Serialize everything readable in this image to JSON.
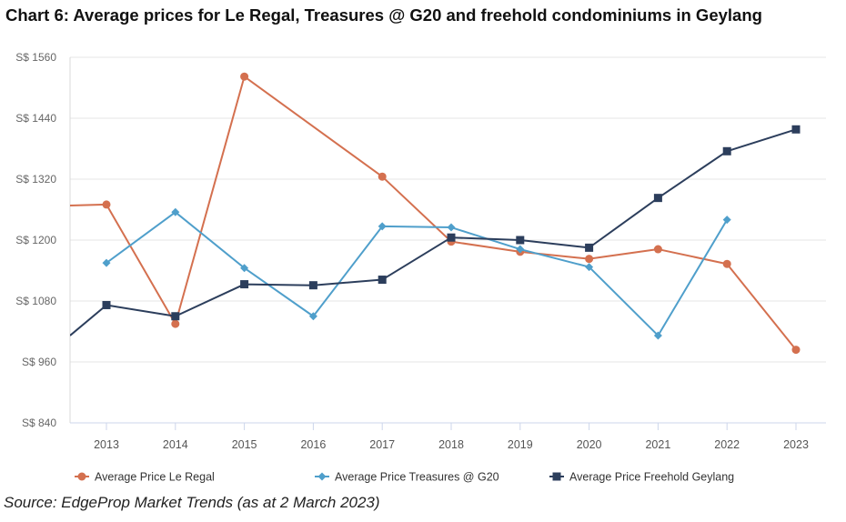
{
  "title": "Chart 6: Average prices for Le Regal, Treasures @ G20 and freehold condominiums in Geylang",
  "source": "Source: EdgeProp Market Trends (as at 2 March 2023)",
  "chart_data": {
    "type": "line",
    "title": "Chart 6: Average prices for Le Regal, Treasures @ G20 and freehold condominiums in Geylang",
    "xlabel": "",
    "ylabel": "",
    "ylim": [
      840,
      1560
    ],
    "yticks": [
      840,
      960,
      1080,
      1200,
      1320,
      1440,
      1560
    ],
    "ytick_labels": [
      "S$ 840",
      "S$ 960",
      "S$ 1080",
      "S$ 1200",
      "S$ 1320",
      "S$ 1440",
      "S$ 1560"
    ],
    "categories": [
      "2013",
      "2014",
      "2015",
      "2016",
      "2017",
      "2018",
      "2019",
      "2020",
      "2021",
      "2022",
      "2023"
    ],
    "grid": true,
    "legend_position": "bottom",
    "series": [
      {
        "name": "Average Price Le Regal",
        "color": "#d4704f",
        "marker": "circle",
        "values": [
          1270,
          1035,
          1522,
          null,
          1325,
          1197,
          1177,
          1163,
          1182,
          1153,
          984
        ]
      },
      {
        "name": "Average Price Treasures @ G20",
        "color": "#4f9fcb",
        "marker": "diamond",
        "values": [
          1155,
          1255,
          1145,
          1050,
          1227,
          1225,
          1182,
          1147,
          1012,
          1240,
          null
        ]
      },
      {
        "name": "Average Price Freehold Geylang",
        "color": "#2c3e5c",
        "marker": "square",
        "values": [
          1072,
          1050,
          1113,
          1111,
          1122,
          1205,
          1200,
          1185,
          1283,
          1375,
          1418
        ]
      }
    ]
  }
}
